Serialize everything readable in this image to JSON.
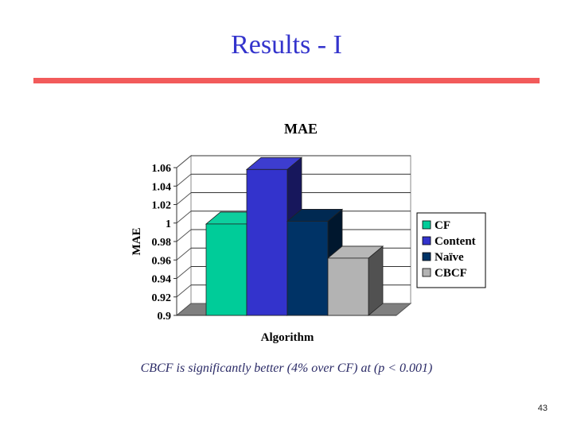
{
  "slide": {
    "title": "Results - I",
    "caption": "CBCF is significantly better (4% over CF) at (p < 0.001)",
    "page_number": "43"
  },
  "chart_data": {
    "type": "bar",
    "title": "MAE",
    "xlabel": "Algorithm",
    "ylabel": "MAE",
    "ylim": [
      0.9,
      1.06
    ],
    "yticks": [
      "1.06",
      "1.04",
      "1.02",
      "1",
      "0.98",
      "0.96",
      "0.94",
      "0.92",
      "0.9"
    ],
    "categories": [
      "CF",
      "Content",
      "Naïve",
      "CBCF"
    ],
    "values": [
      0.999,
      1.058,
      1.002,
      0.962
    ],
    "colors": [
      "#00cc99",
      "#3333cc",
      "#003366",
      "#b3b3b3"
    ],
    "legend_position": "right",
    "grid": true
  }
}
